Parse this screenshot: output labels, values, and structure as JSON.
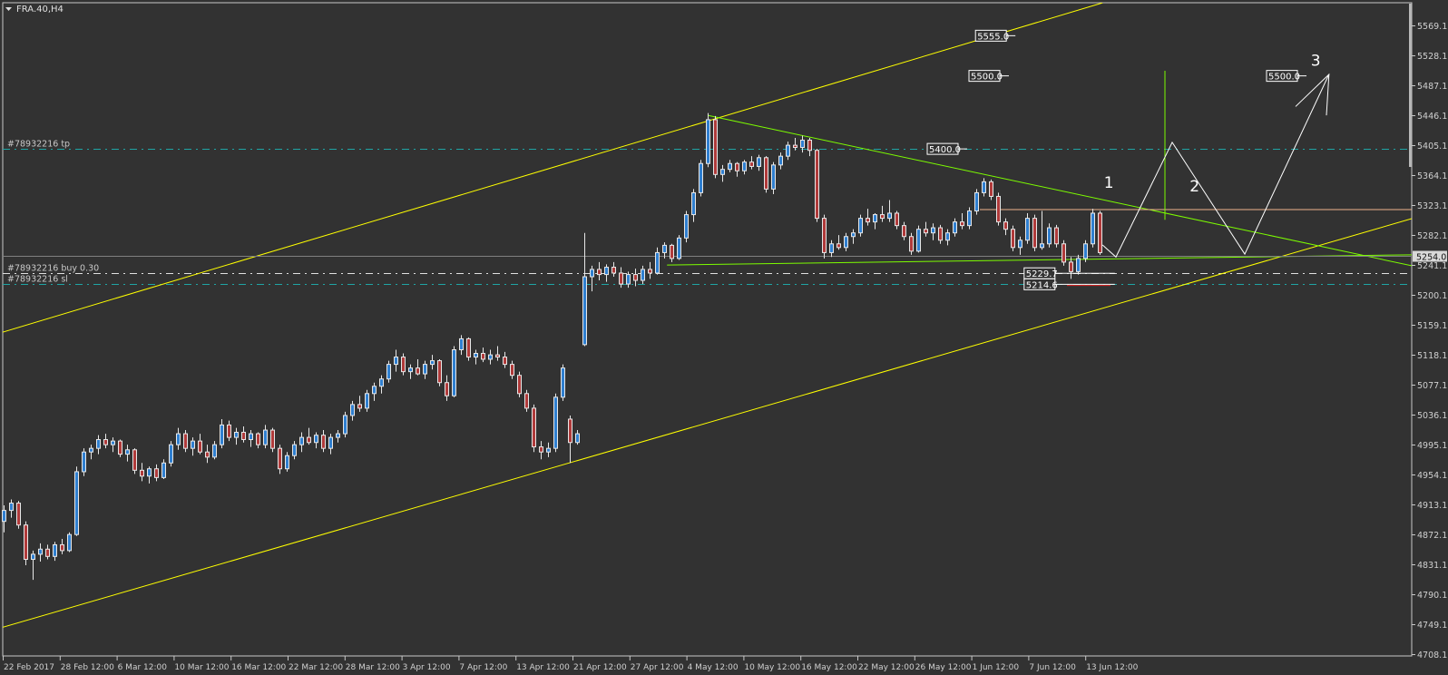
{
  "window": {
    "title": "FRA.40,H4",
    "menu_icon": "triangle-down-icon"
  },
  "colors": {
    "background": "#323232",
    "grid_border": "#c8c8c8",
    "bull_fill": "#2f7fd0",
    "bear_fill": "#b03a3a",
    "candle_outline": "#e8e8e8",
    "channel": "#ffff00",
    "trendline": "#7cfc00",
    "order_tp_sl": "#1fa5a5",
    "order_entry": "#e0e0e0",
    "resistance": "#f0b48c",
    "bid_line": "#808080",
    "projection": "#ffffff",
    "sl_marker": "#e02020"
  },
  "chart_data": {
    "type": "candlestick",
    "symbol": "FRA.40",
    "timeframe": "H4",
    "ylim": [
      4708.1,
      5569.1
    ],
    "y_ticks": [
      "5569.1",
      "5528.1",
      "5487.1",
      "5446.1",
      "5405.1",
      "5364.1",
      "5323.1",
      "5282.1",
      "5241.1",
      "5200.1",
      "5159.1",
      "5118.1",
      "5077.1",
      "5036.1",
      "4995.1",
      "4954.1",
      "4913.1",
      "4872.1",
      "4831.1",
      "4790.1",
      "4749.1",
      "4708.1"
    ],
    "x_ticks": [
      "22 Feb 2017",
      "28 Feb 12:00",
      "6 Mar 12:00",
      "10 Mar 12:00",
      "16 Mar 12:00",
      "22 Mar 12:00",
      "28 Mar 12:00",
      "3 Apr 12:00",
      "7 Apr 12:00",
      "13 Apr 12:00",
      "21 Apr 12:00",
      "27 Apr 12:00",
      "4 May 12:00",
      "10 May 12:00",
      "16 May 12:00",
      "22 May 12:00",
      "26 May 12:00",
      "1 Jun 12:00",
      "7 Jun 12:00",
      "13 Jun 12:00"
    ],
    "current_price": "5254.0",
    "ohlc": [
      [
        4890,
        4912,
        4875,
        4905
      ],
      [
        4905,
        4920,
        4895,
        4915
      ],
      [
        4915,
        4918,
        4880,
        4885
      ],
      [
        4885,
        4890,
        4830,
        4838
      ],
      [
        4838,
        4850,
        4810,
        4845
      ],
      [
        4845,
        4860,
        4835,
        4852
      ],
      [
        4852,
        4858,
        4838,
        4842
      ],
      [
        4842,
        4862,
        4836,
        4858
      ],
      [
        4858,
        4866,
        4845,
        4850
      ],
      [
        4850,
        4875,
        4848,
        4872
      ],
      [
        4872,
        4965,
        4870,
        4958
      ],
      [
        4958,
        4990,
        4952,
        4985
      ],
      [
        4985,
        4995,
        4975,
        4990
      ],
      [
        4990,
        5008,
        4982,
        5002
      ],
      [
        5002,
        5010,
        4990,
        4995
      ],
      [
        4995,
        5005,
        4985,
        5000
      ],
      [
        5000,
        5002,
        4978,
        4982
      ],
      [
        4982,
        4995,
        4972,
        4988
      ],
      [
        4988,
        4990,
        4955,
        4960
      ],
      [
        4960,
        4970,
        4945,
        4952
      ],
      [
        4952,
        4965,
        4942,
        4962
      ],
      [
        4962,
        4968,
        4945,
        4950
      ],
      [
        4950,
        4975,
        4948,
        4970
      ],
      [
        4970,
        5000,
        4965,
        4995
      ],
      [
        4995,
        5018,
        4988,
        5010
      ],
      [
        5010,
        5015,
        4985,
        4990
      ],
      [
        4990,
        5005,
        4980,
        5000
      ],
      [
        5000,
        5010,
        4982,
        4985
      ],
      [
        4985,
        4995,
        4970,
        4978
      ],
      [
        4978,
        5000,
        4975,
        4995
      ],
      [
        4995,
        5030,
        4990,
        5022
      ],
      [
        5022,
        5028,
        5000,
        5005
      ],
      [
        5005,
        5018,
        4995,
        5012
      ],
      [
        5012,
        5020,
        4998,
        5002
      ],
      [
        5002,
        5015,
        4992,
        5010
      ],
      [
        5010,
        5012,
        4990,
        4995
      ],
      [
        4995,
        5022,
        4990,
        5015
      ],
      [
        5015,
        5018,
        4985,
        4990
      ],
      [
        4990,
        4995,
        4955,
        4962
      ],
      [
        4962,
        4985,
        4958,
        4980
      ],
      [
        4980,
        5000,
        4975,
        4995
      ],
      [
        4995,
        5012,
        4985,
        5005
      ],
      [
        5005,
        5018,
        4995,
        4998
      ],
      [
        4998,
        5012,
        4990,
        5008
      ],
      [
        5008,
        5015,
        4985,
        4990
      ],
      [
        4990,
        5010,
        4982,
        5005
      ],
      [
        5005,
        5015,
        4998,
        5010
      ],
      [
        5010,
        5040,
        5005,
        5035
      ],
      [
        5035,
        5055,
        5028,
        5050
      ],
      [
        5050,
        5062,
        5040,
        5045
      ],
      [
        5045,
        5070,
        5040,
        5065
      ],
      [
        5065,
        5080,
        5055,
        5075
      ],
      [
        5075,
        5090,
        5065,
        5085
      ],
      [
        5085,
        5110,
        5080,
        5105
      ],
      [
        5105,
        5125,
        5095,
        5115
      ],
      [
        5115,
        5120,
        5090,
        5095
      ],
      [
        5095,
        5105,
        5085,
        5100
      ],
      [
        5100,
        5112,
        5090,
        5092
      ],
      [
        5092,
        5110,
        5085,
        5105
      ],
      [
        5105,
        5118,
        5098,
        5110
      ],
      [
        5110,
        5112,
        5075,
        5080
      ],
      [
        5080,
        5090,
        5055,
        5062
      ],
      [
        5062,
        5130,
        5060,
        5125
      ],
      [
        5125,
        5145,
        5118,
        5140
      ],
      [
        5140,
        5142,
        5110,
        5115
      ],
      [
        5115,
        5125,
        5105,
        5120
      ],
      [
        5120,
        5128,
        5108,
        5112
      ],
      [
        5112,
        5125,
        5105,
        5118
      ],
      [
        5118,
        5130,
        5110,
        5115
      ],
      [
        5115,
        5122,
        5100,
        5105
      ],
      [
        5105,
        5110,
        5085,
        5090
      ],
      [
        5090,
        5095,
        5060,
        5065
      ],
      [
        5065,
        5070,
        5040,
        5045
      ],
      [
        5045,
        5050,
        4985,
        4992
      ],
      [
        4992,
        5000,
        4975,
        4985
      ],
      [
        4985,
        4998,
        4978,
        4990
      ],
      [
        4990,
        5065,
        4985,
        5060
      ],
      [
        5060,
        5105,
        5055,
        5100
      ],
      [
        5030,
        5035,
        4970,
        4998
      ],
      [
        4998,
        5015,
        4995,
        5010
      ],
      [
        5132,
        5285,
        5130,
        5225
      ],
      [
        5225,
        5240,
        5205,
        5235
      ],
      [
        5235,
        5245,
        5220,
        5228
      ],
      [
        5228,
        5242,
        5218,
        5238
      ],
      [
        5238,
        5245,
        5225,
        5230
      ],
      [
        5230,
        5238,
        5210,
        5215
      ],
      [
        5215,
        5232,
        5210,
        5228
      ],
      [
        5228,
        5236,
        5212,
        5220
      ],
      [
        5220,
        5240,
        5215,
        5235
      ],
      [
        5235,
        5245,
        5222,
        5230
      ],
      [
        5230,
        5265,
        5228,
        5258
      ],
      [
        5258,
        5272,
        5250,
        5268
      ],
      [
        5268,
        5270,
        5245,
        5250
      ],
      [
        5250,
        5282,
        5248,
        5278
      ],
      [
        5278,
        5315,
        5272,
        5310
      ],
      [
        5310,
        5345,
        5300,
        5340
      ],
      [
        5340,
        5385,
        5335,
        5380
      ],
      [
        5380,
        5449,
        5375,
        5440
      ],
      [
        5440,
        5445,
        5360,
        5365
      ],
      [
        5365,
        5378,
        5355,
        5372
      ],
      [
        5372,
        5385,
        5368,
        5380
      ],
      [
        5380,
        5382,
        5362,
        5370
      ],
      [
        5370,
        5385,
        5365,
        5382
      ],
      [
        5382,
        5390,
        5372,
        5376
      ],
      [
        5376,
        5392,
        5370,
        5388
      ],
      [
        5388,
        5390,
        5340,
        5345
      ],
      [
        5345,
        5382,
        5338,
        5378
      ],
      [
        5378,
        5395,
        5372,
        5390
      ],
      [
        5390,
        5410,
        5385,
        5405
      ],
      [
        5405,
        5415,
        5398,
        5402
      ],
      [
        5402,
        5418,
        5395,
        5412
      ],
      [
        5412,
        5415,
        5390,
        5398
      ],
      [
        5398,
        5400,
        5300,
        5305
      ],
      [
        5305,
        5310,
        5250,
        5258
      ],
      [
        5258,
        5275,
        5252,
        5270
      ],
      [
        5270,
        5282,
        5262,
        5265
      ],
      [
        5265,
        5285,
        5260,
        5280
      ],
      [
        5280,
        5290,
        5270,
        5285
      ],
      [
        5285,
        5310,
        5280,
        5305
      ],
      [
        5305,
        5318,
        5295,
        5300
      ],
      [
        5300,
        5312,
        5290,
        5310
      ],
      [
        5310,
        5322,
        5300,
        5305
      ],
      [
        5305,
        5330,
        5300,
        5312
      ],
      [
        5312,
        5315,
        5290,
        5295
      ],
      [
        5295,
        5300,
        5275,
        5280
      ],
      [
        5280,
        5285,
        5255,
        5260
      ],
      [
        5260,
        5295,
        5258,
        5290
      ],
      [
        5290,
        5300,
        5280,
        5285
      ],
      [
        5285,
        5298,
        5275,
        5292
      ],
      [
        5292,
        5296,
        5270,
        5275
      ],
      [
        5275,
        5290,
        5268,
        5285
      ],
      [
        5285,
        5305,
        5280,
        5300
      ],
      [
        5300,
        5312,
        5290,
        5295
      ],
      [
        5295,
        5320,
        5290,
        5315
      ],
      [
        5315,
        5345,
        5310,
        5340
      ],
      [
        5340,
        5360,
        5335,
        5355
      ],
      [
        5355,
        5358,
        5330,
        5335
      ],
      [
        5335,
        5340,
        5295,
        5300
      ],
      [
        5300,
        5305,
        5282,
        5290
      ],
      [
        5290,
        5295,
        5260,
        5265
      ],
      [
        5265,
        5280,
        5255,
        5275
      ],
      [
        5275,
        5312,
        5270,
        5305
      ],
      [
        5305,
        5310,
        5260,
        5265
      ],
      [
        5265,
        5315,
        5262,
        5270
      ],
      [
        5270,
        5298,
        5265,
        5292
      ],
      [
        5292,
        5296,
        5265,
        5270
      ],
      [
        5270,
        5275,
        5240,
        5245
      ],
      [
        5245,
        5252,
        5222,
        5232
      ],
      [
        5232,
        5255,
        5228,
        5250
      ],
      [
        5250,
        5275,
        5245,
        5270
      ],
      [
        5270,
        5318,
        5265,
        5312
      ],
      [
        5312,
        5315,
        5255,
        5258
      ]
    ],
    "order_lines": [
      {
        "label": "#78932216 tp",
        "price": 5400.0,
        "style": "dash-dot",
        "color": "#1fa5a5"
      },
      {
        "label": "#78932216 buy 0.30",
        "price": 5229.7,
        "style": "dash-dot",
        "color": "#e0e0e0"
      },
      {
        "label": "#78932216 sl",
        "price": 5214.6,
        "style": "dash-dot",
        "color": "#1fa5a5"
      }
    ],
    "trendlines": [
      {
        "name": "channel-upper",
        "color": "#ffff00",
        "from": [
          -0.5,
          5148
        ],
        "to": [
          151.4,
          5600
        ]
      },
      {
        "name": "channel-lower",
        "color": "#ffff00",
        "from": [
          -0.5,
          4744
        ],
        "to": [
          194,
          5304.5
        ]
      },
      {
        "name": "descending-resistance",
        "color": "#7cfc00",
        "from": [
          97,
          5446
        ],
        "to": [
          194,
          5240
        ]
      },
      {
        "name": "triangle-support",
        "color": "#7cfc00",
        "from": [
          91.4,
          5241
        ],
        "to": [
          194,
          5255
        ]
      },
      {
        "name": "horizontal-resistance",
        "color": "#f0b48c",
        "from": [
          134.5,
          5317
        ],
        "to": [
          194,
          5317
        ]
      },
      {
        "name": "target-vertical",
        "color": "#7cfc00",
        "from": [
          160,
          5507
        ],
        "to": [
          160,
          5303
        ]
      }
    ],
    "projection_path": [
      [
        151.4,
        5268.5
      ],
      [
        153.25,
        5252
      ],
      [
        161,
        5409
      ],
      [
        171,
        5256
      ],
      [
        182.6,
        5502
      ]
    ],
    "projection_arrowhead": [
      [
        178,
        5458
      ],
      [
        182.6,
        5502
      ],
      [
        182.25,
        5446
      ]
    ],
    "wave_labels": [
      {
        "text": "1",
        "at": [
          151.6,
          5347
        ]
      },
      {
        "text": "2",
        "at": [
          163.4,
          5342
        ]
      },
      {
        "text": "3",
        "at": [
          180.1,
          5514
        ]
      }
    ],
    "price_labels": [
      {
        "text": "5555.0",
        "at": [
          133.9,
          5555
        ]
      },
      {
        "text": "5500.0",
        "at": [
          133,
          5500
        ]
      },
      {
        "text": "5400.0",
        "at": [
          127.25,
          5400
        ]
      },
      {
        "text": "5500.0",
        "at": [
          174,
          5500
        ]
      },
      {
        "text": "5229.7",
        "at": [
          140.6,
          5229.7
        ]
      },
      {
        "text": "5214.6",
        "at": [
          140.6,
          5214.6
        ]
      }
    ],
    "sl_marker": {
      "from": [
        146.5,
        5213
      ],
      "to": [
        152.5,
        5213
      ]
    }
  }
}
